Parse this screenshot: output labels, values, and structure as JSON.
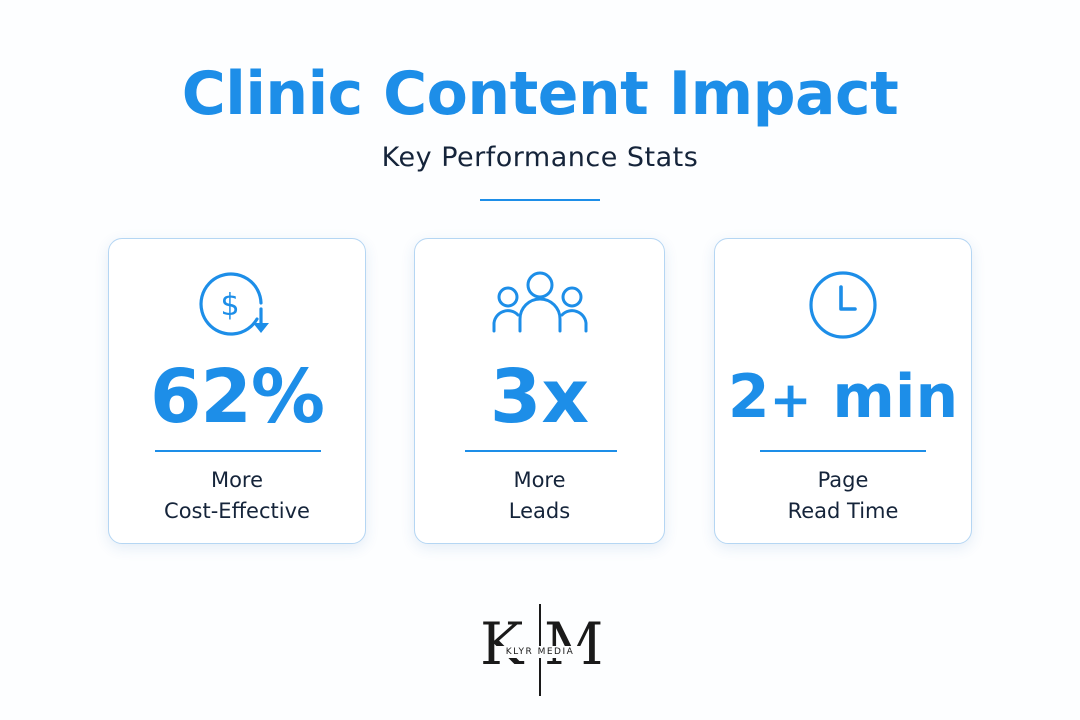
{
  "colors": {
    "accent": "#1d8ee8",
    "text_dark": "#15243a",
    "divider": "#1d8ee8",
    "card_border": "#b5d6f3",
    "logo_dark": "#1a1a1a"
  },
  "header": {
    "title": "Clinic Content Impact",
    "subtitle": "Key Performance Stats"
  },
  "stats": [
    {
      "icon": "dollar-decrease-icon",
      "value": "62%",
      "label_line1": "More",
      "label_line2": "Cost-Effective"
    },
    {
      "icon": "people-group-icon",
      "value": "3x",
      "label_line1": "More",
      "label_line2": "Leads"
    },
    {
      "icon": "clock-icon",
      "value_main": "2",
      "value_plus": "+",
      "value_unit": "min",
      "label_line1": "Page",
      "label_line2": "Read Time"
    }
  ],
  "logo": {
    "letter_left": "K",
    "letter_right": "M",
    "brand_text": "KLYR MEDIA"
  }
}
